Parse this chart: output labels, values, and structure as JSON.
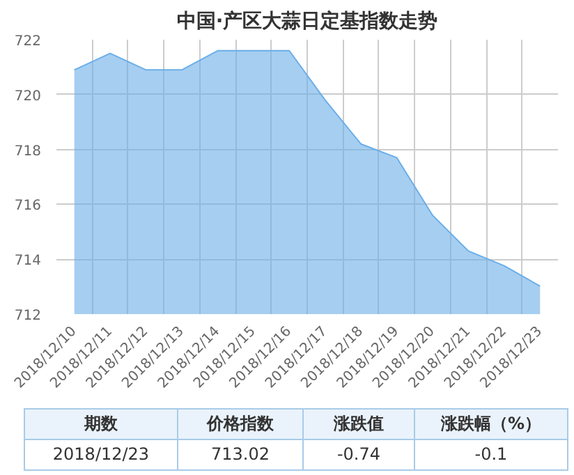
{
  "chart_data": {
    "type": "area",
    "title": "中国·产区大蒜日定基指数走势",
    "categories": [
      "2018/12/10",
      "2018/12/11",
      "2018/12/12",
      "2018/12/13",
      "2018/12/14",
      "2018/12/15",
      "2018/12/16",
      "2018/12/17",
      "2018/12/18",
      "2018/12/19",
      "2018/12/20",
      "2018/12/21",
      "2018/12/22",
      "2018/12/23"
    ],
    "series": [
      {
        "color": "#6aaee8",
        "values": [
          720.9,
          721.5,
          720.9,
          720.9,
          721.6,
          721.6,
          721.6,
          719.8,
          718.2,
          717.7,
          715.6,
          714.3,
          713.76,
          713.02
        ]
      }
    ],
    "ylim": [
      712,
      722
    ],
    "yticks": [
      712,
      714,
      716,
      718,
      720,
      722
    ],
    "grid": true,
    "annotations": [
      "期数",
      "价格指数",
      "涨跌值",
      "涨跌幅（%）",
      "2018/12/23",
      "713.02",
      "-0.74",
      "-0.1"
    ]
  }
}
